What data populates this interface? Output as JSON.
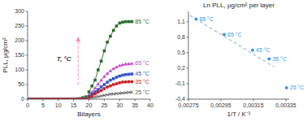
{
  "chart_data": [
    {
      "type": "line",
      "xlabel": "Bilayers",
      "ylabel": "PLL, μg/cm²",
      "xlim": [
        0,
        40
      ],
      "ylim": [
        0,
        300
      ],
      "xticks": [
        0,
        5,
        10,
        15,
        20,
        25,
        30,
        35,
        40
      ],
      "yticks": [
        0,
        50,
        100,
        150,
        200,
        250,
        300
      ],
      "series": [
        {
          "type": "scatter",
          "color": "#2a6e2a",
          "marker": "square",
          "x": [
            0,
            1,
            2,
            3,
            4,
            5,
            6,
            7,
            8,
            9,
            10,
            11,
            12,
            13,
            14,
            15,
            16,
            17,
            18,
            19
          ],
          "values": [
            0,
            0,
            0,
            0,
            0,
            0,
            0,
            0,
            0,
            0,
            0,
            0,
            0,
            0,
            0,
            0,
            1,
            2,
            5,
            8
          ]
        },
        {
          "name": "85 °C",
          "type": "line",
          "color": "#2a6e2a",
          "marker": "square",
          "x": [
            20,
            21,
            22,
            23,
            24,
            25,
            26,
            27,
            28,
            29,
            30,
            31,
            32,
            33,
            34
          ],
          "values": [
            25,
            45,
            65,
            100,
            130,
            165,
            195,
            215,
            235,
            250,
            260,
            263,
            265,
            265,
            265
          ]
        },
        {
          "type": "scatter",
          "color": "#cc44cc",
          "marker": "triangle",
          "x": [
            0,
            1,
            2,
            3,
            4,
            5,
            6,
            7,
            8,
            9,
            10,
            11,
            12,
            13,
            14,
            15,
            16,
            17,
            18,
            19
          ],
          "values": [
            0,
            0,
            0,
            0,
            0,
            0,
            0,
            0,
            0,
            0,
            0,
            0,
            0,
            0,
            0,
            0,
            0,
            1,
            2,
            4
          ]
        },
        {
          "name": "65 °C",
          "type": "line",
          "color": "#cc44cc",
          "marker": "triangle",
          "x": [
            20,
            21,
            22,
            23,
            24,
            25,
            26,
            27,
            28,
            29,
            30,
            31,
            32,
            33,
            34
          ],
          "values": [
            15,
            25,
            38,
            52,
            65,
            78,
            88,
            97,
            105,
            110,
            115,
            118,
            120,
            121,
            122
          ]
        },
        {
          "type": "scatter",
          "color": "#3355cc",
          "marker": "square",
          "x": [
            0,
            1,
            2,
            3,
            4,
            5,
            6,
            7,
            8,
            9,
            10,
            11,
            12,
            13,
            14,
            15,
            16,
            17,
            18,
            19
          ],
          "values": [
            0,
            0,
            0,
            0,
            0,
            0,
            0,
            0,
            0,
            0,
            0,
            0,
            0,
            0,
            0,
            0,
            0,
            0,
            1,
            2
          ]
        },
        {
          "name": "45 °C",
          "type": "line",
          "color": "#3355cc",
          "marker": "square",
          "x": [
            20,
            21,
            22,
            23,
            24,
            25,
            26,
            27,
            28,
            29,
            30,
            31,
            32,
            33,
            34
          ],
          "values": [
            10,
            17,
            25,
            33,
            42,
            50,
            58,
            65,
            70,
            75,
            79,
            82,
            84,
            85,
            86
          ]
        },
        {
          "type": "scatter",
          "color": "#cc2222",
          "marker": "circle",
          "x": [
            0,
            1,
            2,
            3,
            4,
            5,
            6,
            7,
            8,
            9,
            10,
            11,
            12,
            13,
            14,
            15,
            16,
            17,
            18,
            19
          ],
          "values": [
            0,
            0,
            0,
            0,
            0,
            0,
            0,
            0,
            0,
            0,
            0,
            0,
            0,
            0,
            0,
            0,
            0,
            0,
            1,
            1
          ]
        },
        {
          "name": "35 °C",
          "type": "line",
          "color": "#cc2222",
          "marker": "circle",
          "x": [
            20,
            21,
            22,
            23,
            24,
            25,
            26,
            27,
            28,
            29,
            30,
            31,
            32,
            33,
            34
          ],
          "values": [
            7,
            12,
            18,
            24,
            30,
            36,
            42,
            46,
            50,
            53,
            56,
            58,
            59,
            60,
            60
          ]
        },
        {
          "type": "scatter",
          "color": "#555555",
          "marker": "x",
          "x": [
            0,
            1,
            2,
            3,
            4,
            5,
            6,
            7,
            8,
            9,
            10,
            11,
            12,
            13,
            14,
            15,
            16,
            17,
            18,
            19
          ],
          "values": [
            0,
            0,
            0,
            0,
            0,
            0,
            0,
            0,
            0,
            0,
            0,
            0,
            0,
            0,
            0,
            0,
            0,
            0,
            0,
            0
          ]
        },
        {
          "name": "25 °C",
          "type": "line",
          "color": "#555555",
          "marker": "x",
          "x": [
            20,
            21,
            22,
            23,
            24,
            25,
            26,
            27,
            28,
            29,
            30,
            31,
            32,
            33,
            34
          ],
          "values": [
            3,
            5,
            7,
            9,
            11,
            13,
            15,
            17,
            18,
            19,
            20,
            21,
            22,
            23,
            24
          ]
        }
      ],
      "annotations": [
        {
          "type": "arrow",
          "x": 16.5,
          "y_start": 50,
          "y_end": 210,
          "color": "#ff88aa"
        },
        {
          "type": "text",
          "text": "T, °C",
          "x": 9.5,
          "y": 130,
          "color": "#333333"
        }
      ]
    },
    {
      "type": "scatter",
      "title": "Ln PLL, μg/cm² per layer",
      "xlabel": "1/T / K⁻¹",
      "xlim": [
        0.00275,
        0.00337
      ],
      "ylim": [
        -0.4,
        1.3
      ],
      "xticks": [
        {
          "value": 0.00275,
          "label": "0,00275"
        },
        {
          "value": 0.00295,
          "label": "0,00295"
        },
        {
          "value": 0.00315,
          "label": "0,00315"
        },
        {
          "value": 0.00335,
          "label": "0,00335"
        }
      ],
      "yticks": [
        {
          "value": -0.4,
          "label": "-0,4"
        },
        {
          "value": -0.1,
          "label": "-0,1"
        },
        {
          "value": 0.2,
          "label": "0,2"
        },
        {
          "value": 0.5,
          "label": "0,5"
        },
        {
          "value": 0.8,
          "label": "0,8"
        },
        {
          "value": 1.1,
          "label": "1,1"
        }
      ],
      "series": [
        {
          "type": "line",
          "line_style": "dashed",
          "color": "#88bbdd",
          "x": [
            0.00276,
            0.00328
          ],
          "values": [
            1.22,
            0.22
          ]
        },
        {
          "name": "85 °C",
          "type": "scatter",
          "color": "#3399ee",
          "marker": "circle",
          "x": [
            0.002797
          ],
          "values": [
            1.15
          ]
        },
        {
          "name": "65 °C",
          "type": "scatter",
          "color": "#3399ee",
          "marker": "circle",
          "x": [
            0.00297
          ],
          "values": [
            0.85
          ]
        },
        {
          "name": "45 °C",
          "type": "scatter",
          "color": "#3399ee",
          "marker": "circle",
          "x": [
            0.003145
          ],
          "values": [
            0.55
          ]
        },
        {
          "name": "35 °C",
          "type": "scatter",
          "color": "#3399ee",
          "marker": "circle",
          "x": [
            0.003247
          ],
          "values": [
            0.38
          ]
        },
        {
          "name": "25 °C",
          "type": "scatter",
          "color": "#3399ee",
          "marker": "circle",
          "x": [
            0.003354
          ],
          "values": [
            -0.18
          ]
        }
      ]
    }
  ]
}
